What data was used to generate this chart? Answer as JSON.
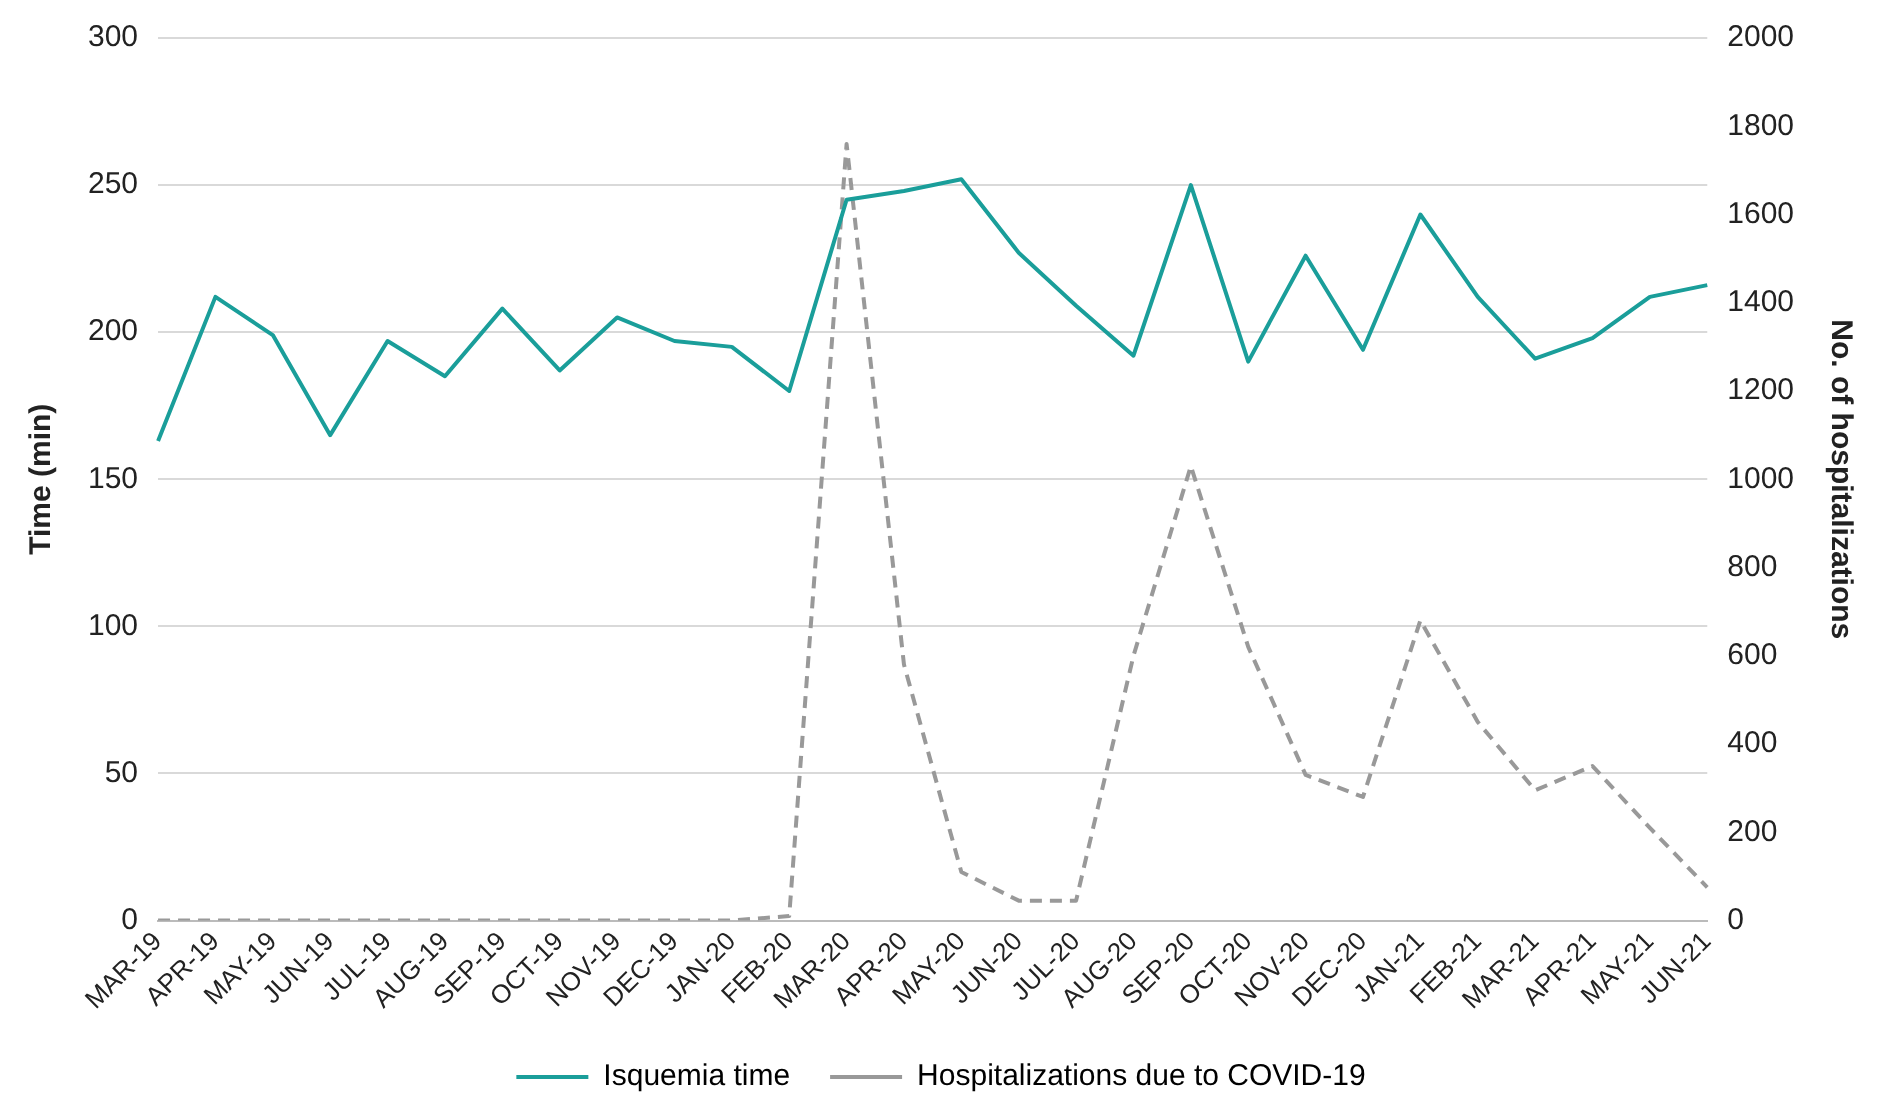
{
  "chart_data": {
    "type": "line",
    "xlabel": null,
    "ylabel": "Time (min)",
    "y2label": "No. of hospitalizations",
    "categories": [
      "MAR-19",
      "APR-19",
      "MAY-19",
      "JUN-19",
      "JUL-19",
      "AUG-19",
      "SEP-19",
      "OCT-19",
      "NOV-19",
      "DEC-19",
      "JAN-20",
      "FEB-20",
      "MAR-20",
      "APR-20",
      "MAY-20",
      "JUN-20",
      "JUL-20",
      "AUG-20",
      "SEP-20",
      "OCT-20",
      "NOV-20",
      "DEC-20",
      "JAN-21",
      "FEB-21",
      "MAR-21",
      "APR-21",
      "MAY-21",
      "JUN-21"
    ],
    "series": [
      {
        "name": "Isquemia time",
        "color": "#1a9e9a",
        "line_style": "solid",
        "values": [
          163,
          212,
          199,
          165,
          197,
          185,
          208,
          187,
          205,
          197,
          195,
          180,
          245,
          248,
          252,
          227,
          209,
          192,
          250,
          190,
          226,
          194,
          240,
          212,
          191,
          198,
          212,
          216
        ]
      },
      {
        "name": "Hospitalizations due to COVID-19",
        "color": "#999999",
        "line_style": "dashed",
        "axis": "y2",
        "values": [
          0,
          0,
          0,
          0,
          0,
          0,
          0,
          0,
          0,
          0,
          0,
          10,
          1760,
          580,
          110,
          45,
          45,
          600,
          1030,
          620,
          330,
          280,
          680,
          450,
          295,
          350,
          210,
          75
        ]
      }
    ],
    "ylim": [
      0,
      300
    ],
    "yticks": [
      0,
      50,
      100,
      150,
      200,
      250,
      300
    ],
    "y2lim": [
      0,
      2000
    ],
    "y2ticks": [
      0,
      200,
      400,
      600,
      800,
      1000,
      1200,
      1400,
      1600,
      1800,
      2000
    ],
    "grid": "y",
    "legend": "bottom",
    "marker": "none"
  }
}
